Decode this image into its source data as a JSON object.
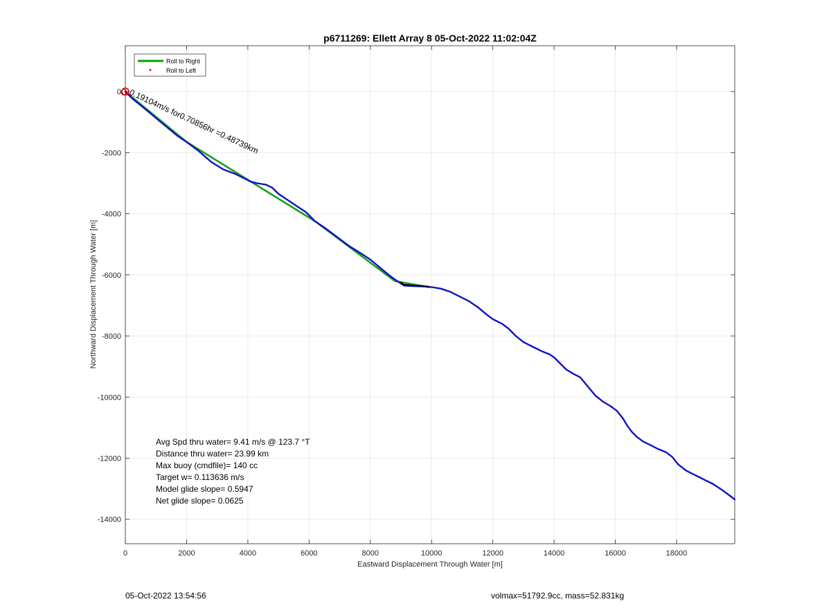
{
  "chart_data": {
    "type": "line",
    "title": "p6711269: Ellett Array 8 05-Oct-2022 11:02:04Z",
    "xlabel": "Eastward Displacement Through Water [m]",
    "ylabel": "Northward Displacement Through Water [m]",
    "xlim": [
      0,
      19900
    ],
    "ylim": [
      -14800,
      1500
    ],
    "xticks": [
      0,
      2000,
      4000,
      6000,
      8000,
      10000,
      12000,
      14000,
      16000,
      18000
    ],
    "yticks": [
      0,
      -2000,
      -4000,
      -6000,
      -8000,
      -10000,
      -12000,
      -14000
    ],
    "xtick_labels": [
      "0",
      "2000",
      "4000",
      "6000",
      "8000",
      "10000",
      "12000",
      "14000",
      "16000",
      "18000"
    ],
    "ytick_labels": [
      "0",
      "-2000",
      "-4000",
      "-6000",
      "-8000",
      "-10000",
      "-12000",
      "-14000"
    ],
    "grid": true,
    "legend": {
      "location": "top-left",
      "entries": [
        {
          "label": "Roll to Right",
          "color": "#00a000",
          "marker": "line"
        },
        {
          "label": "Roll to Left",
          "color": "#ff0000",
          "marker": "dot"
        }
      ]
    },
    "series": [
      {
        "name": "Roll to Right",
        "color": "#1aa01a",
        "x": [
          0,
          2000,
          6200,
          8800,
          9900
        ],
        "y": [
          0,
          -1650,
          -4250,
          -6200,
          -6400
        ]
      },
      {
        "color": "#1010c8",
        "x": [
          0,
          100,
          250,
          500,
          800,
          1100,
          1400,
          1700,
          2000,
          2400,
          2800,
          3200,
          3600,
          3900,
          4100,
          4300,
          4600,
          4800,
          5000,
          5300,
          5600,
          5900,
          6100,
          6200,
          6500,
          6900,
          7300,
          7700,
          8000,
          8300,
          8600,
          8800,
          9100,
          9400,
          9700,
          10000,
          10300,
          10600,
          10900,
          11200,
          11500,
          11800,
          12000,
          12300,
          12500,
          12750,
          13000,
          13300,
          13600,
          13850,
          14000,
          14150,
          14400,
          14650,
          14850,
          15100,
          15350,
          15600,
          15850,
          16050,
          16250,
          16400,
          16550,
          16700,
          16900,
          17100,
          17400,
          17650,
          17850,
          18050,
          18300,
          18600,
          18900,
          19200,
          19500,
          19700,
          19900
        ],
        "y": [
          0,
          -100,
          -250,
          -450,
          -700,
          -950,
          -1200,
          -1450,
          -1650,
          -1950,
          -2300,
          -2550,
          -2700,
          -2850,
          -2950,
          -3000,
          -3050,
          -3150,
          -3350,
          -3550,
          -3750,
          -3950,
          -4150,
          -4250,
          -4450,
          -4750,
          -5050,
          -5300,
          -5500,
          -5750,
          -6000,
          -6150,
          -6350,
          -6370,
          -6380,
          -6400,
          -6450,
          -6550,
          -6700,
          -6850,
          -7050,
          -7300,
          -7450,
          -7600,
          -7750,
          -8000,
          -8200,
          -8350,
          -8500,
          -8600,
          -8700,
          -8850,
          -9100,
          -9250,
          -9350,
          -9650,
          -9950,
          -10150,
          -10300,
          -10450,
          -10700,
          -10950,
          -11150,
          -11300,
          -11450,
          -11550,
          -11700,
          -11800,
          -11950,
          -12200,
          -12400,
          -12550,
          -12700,
          -12850,
          -13050,
          -13200,
          -13350
        ]
      },
      {
        "color": "#000000",
        "x": [
          9000,
          9100,
          9300,
          9500,
          9700,
          9900
        ],
        "y": [
          -6250,
          -6320,
          -6340,
          -6350,
          -6360,
          -6380
        ]
      }
    ],
    "annotations": [
      {
        "text": "Avg Spd thru water=  9.41 m/s @ 123.7 °T"
      },
      {
        "text": "Distance thru water= 23.99 km"
      },
      {
        "text": "Max buoy (cmdfile)= 140 cc"
      },
      {
        "text": "Target w= 0.113636 m/s"
      },
      {
        "text": "Model glide slope= 0.5947"
      },
      {
        "text": "Net glide slope= 0.0625"
      },
      {
        "text": "0.19104m/s for0.70856hr =0.48739km"
      }
    ]
  },
  "footer": {
    "timestamp": "05-Oct-2022 13:54:56",
    "stats": "volmax=51792.9cc, mass=52.831kg"
  }
}
